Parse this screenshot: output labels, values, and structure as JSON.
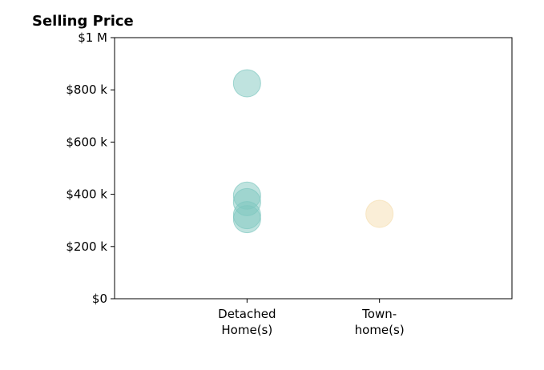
{
  "chart_data": {
    "type": "scatter",
    "title": "Selling Price",
    "categories": [
      "Detached\nHome(s)",
      "Town-\nhome(s)"
    ],
    "category_colors": [
      "#7fc8c0",
      "#f5deb0"
    ],
    "ylim": [
      0,
      1000000
    ],
    "xlim": [
      0,
      3
    ],
    "y_ticks": [
      {
        "value": 0,
        "label": "$0"
      },
      {
        "value": 200000,
        "label": "$200 k"
      },
      {
        "value": 400000,
        "label": "$400 k"
      },
      {
        "value": 600000,
        "label": "$600 k"
      },
      {
        "value": 800000,
        "label": "$800 k"
      },
      {
        "value": 1000000,
        "label": "$1 M"
      }
    ],
    "points": [
      {
        "category": 0,
        "value": 825000
      },
      {
        "category": 0,
        "value": 395000
      },
      {
        "category": 0,
        "value": 370000
      },
      {
        "category": 0,
        "value": 320000
      },
      {
        "category": 0,
        "value": 305000
      },
      {
        "category": 1,
        "value": 325000
      }
    ],
    "grid": false,
    "legend": "none"
  }
}
